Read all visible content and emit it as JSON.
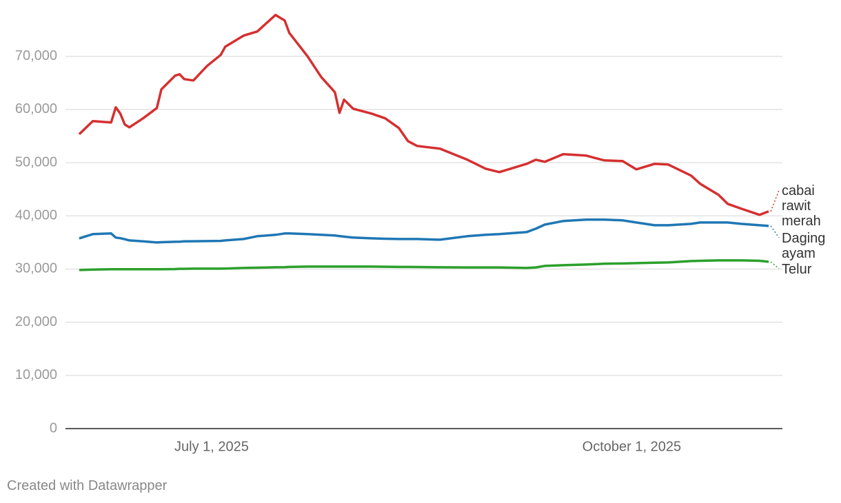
{
  "chart_data": {
    "type": "line",
    "x": [
      "2025-06-02",
      "2025-06-05",
      "2025-06-09",
      "2025-06-10",
      "2025-06-11",
      "2025-06-12",
      "2025-06-13",
      "2025-06-16",
      "2025-06-19",
      "2025-06-20",
      "2025-06-23",
      "2025-06-24",
      "2025-06-25",
      "2025-06-27",
      "2025-06-30",
      "2025-07-03",
      "2025-07-04",
      "2025-07-08",
      "2025-07-11",
      "2025-07-15",
      "2025-07-17",
      "2025-07-18",
      "2025-07-22",
      "2025-07-25",
      "2025-07-28",
      "2025-07-29",
      "2025-07-30",
      "2025-08-01",
      "2025-08-05",
      "2025-08-08",
      "2025-08-11",
      "2025-08-13",
      "2025-08-15",
      "2025-08-20",
      "2025-08-26",
      "2025-08-30",
      "2025-09-02",
      "2025-09-08",
      "2025-09-10",
      "2025-09-12",
      "2025-09-16",
      "2025-09-21",
      "2025-09-25",
      "2025-09-29",
      "2025-10-02",
      "2025-10-06",
      "2025-10-09",
      "2025-10-14",
      "2025-10-16",
      "2025-10-20",
      "2025-10-22",
      "2025-10-25",
      "2025-10-29",
      "2025-10-31"
    ],
    "series": [
      {
        "name": "cabai rawit merah",
        "color": "#d62f2f",
        "values": [
          55350,
          57820,
          57560,
          60410,
          59240,
          57170,
          56650,
          58340,
          60280,
          63780,
          66370,
          66630,
          65720,
          65460,
          68190,
          70270,
          71820,
          73890,
          74670,
          77780,
          76740,
          74410,
          70000,
          66110,
          63260,
          59370,
          61840,
          60150,
          59240,
          58340,
          56520,
          54060,
          53150,
          52630,
          50560,
          48870,
          48230,
          49780,
          50560,
          50170,
          51600,
          51340,
          50430,
          50300,
          48740,
          49780,
          49650,
          47580,
          46020,
          43950,
          42260,
          41350,
          40190,
          40840
        ]
      },
      {
        "name": "Daging ayam",
        "color": "#1f77b4",
        "values": [
          35780,
          36560,
          36690,
          35910,
          35800,
          35600,
          35390,
          35200,
          35000,
          35050,
          35130,
          35150,
          35200,
          35230,
          35260,
          35300,
          35390,
          35650,
          36170,
          36430,
          36690,
          36690,
          36560,
          36430,
          36300,
          36200,
          36100,
          35910,
          35780,
          35700,
          35650,
          35650,
          35650,
          35520,
          36170,
          36430,
          36560,
          36950,
          37590,
          38370,
          39020,
          39280,
          39280,
          39150,
          38760,
          38240,
          38240,
          38500,
          38760,
          38760,
          38760,
          38500,
          38240,
          38110
        ]
      },
      {
        "name": "Telur",
        "color": "#2ca02c",
        "values": [
          29820,
          29900,
          29950,
          29950,
          29950,
          29950,
          29950,
          29950,
          29950,
          29950,
          30000,
          30050,
          30050,
          30070,
          30070,
          30070,
          30100,
          30200,
          30250,
          30330,
          30350,
          30400,
          30460,
          30460,
          30460,
          30460,
          30460,
          30460,
          30460,
          30430,
          30400,
          30400,
          30380,
          30330,
          30300,
          30300,
          30300,
          30200,
          30300,
          30590,
          30720,
          30850,
          31000,
          31050,
          31110,
          31200,
          31240,
          31500,
          31550,
          31630,
          31630,
          31630,
          31550,
          31370
        ]
      }
    ],
    "xlim": [
      "2025-05-30",
      "2025-11-03"
    ],
    "xticks": [
      {
        "value": "2025-07-01",
        "label": "July 1, 2025"
      },
      {
        "value": "2025-10-01",
        "label": "October 1, 2025"
      }
    ],
    "ylim": [
      0,
      78000
    ],
    "yticks": [
      0,
      {
        "value": 10000,
        "label": "10,000"
      },
      {
        "value": 20000,
        "label": "20,000"
      },
      {
        "value": 30000,
        "label": "30,000"
      },
      {
        "value": 40000,
        "label": "40,000"
      },
      {
        "value": 50000,
        "label": "50,000"
      },
      {
        "value": 60000,
        "label": "60,000"
      },
      {
        "value": 70000,
        "label": "70,000"
      }
    ],
    "grid": true,
    "source": "Created with Datawrapper"
  }
}
